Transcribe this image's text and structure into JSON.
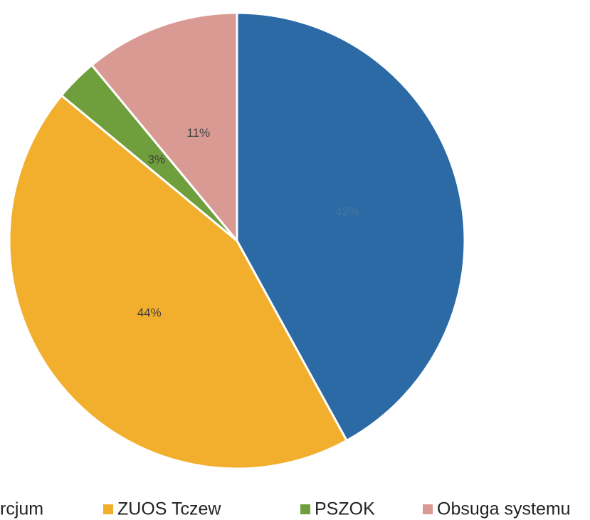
{
  "chart_data": {
    "type": "pie",
    "categories": [
      "rcjum",
      "ZUOS Tczew",
      "PSZOK",
      "Obsuga systemu"
    ],
    "values": [
      42,
      44,
      3,
      11
    ],
    "value_labels": [
      "42%",
      "44%",
      "3%",
      "11%"
    ],
    "colors": [
      "#2b6aa5",
      "#f2af2e",
      "#6f9f3c",
      "#d99a93"
    ]
  }
}
